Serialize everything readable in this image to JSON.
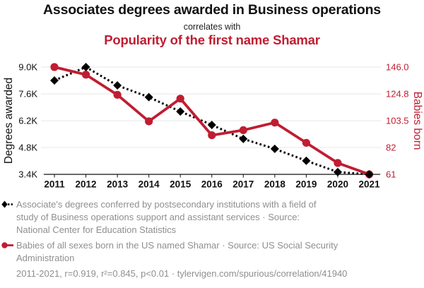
{
  "header": {
    "title": "Associates degrees awarded in Business operations",
    "connector": "correlates with",
    "subtitle": "Popularity of the first name Shamar"
  },
  "colors": {
    "accent_red": "#c01d32",
    "series_black": "#000000",
    "legend_gray": "#8f8f8f",
    "gridline": "#e7e7e7",
    "axis_black": "#111111"
  },
  "chart_data": {
    "type": "line",
    "x": [
      2011,
      2012,
      2013,
      2014,
      2015,
      2016,
      2017,
      2018,
      2019,
      2020,
      2021
    ],
    "x_tick_labels": [
      "2011",
      "2012",
      "2013",
      "2014",
      "2015",
      "2016",
      "2017",
      "2018",
      "2019",
      "2020",
      "2021"
    ],
    "series": [
      {
        "name": "Associate's degrees in Business operations support",
        "axis": "left",
        "color": "#000000",
        "line_style": "dashed",
        "marker": "diamond",
        "values": [
          8300,
          9000,
          8040,
          7430,
          6680,
          5980,
          5250,
          4730,
          4110,
          3520,
          3400
        ]
      },
      {
        "name": "Babies born named Shamar",
        "axis": "right",
        "color": "#c01d32",
        "line_style": "solid",
        "marker": "circle",
        "values": [
          146,
          140,
          124,
          103,
          121,
          92,
          96,
          102,
          86,
          70,
          61
        ]
      }
    ],
    "left_axis": {
      "label": "Degrees awarded",
      "min": 3400,
      "max": 9000,
      "tick_labels": [
        "9.0K",
        "7.6K",
        "6.2K",
        "4.8K",
        "3.4K"
      ]
    },
    "right_axis": {
      "label": "Babies born",
      "min": 61,
      "max": 146,
      "tick_labels": [
        "146.0",
        "124.8",
        "103.5",
        "82",
        "61"
      ]
    },
    "grid": "horizontal",
    "legend_position": "bottom"
  },
  "legend": {
    "items": [
      {
        "icon": "diamond-dashed-line-icon",
        "lines": [
          "Associate's degrees conferred by postsecondary institutions with a field of",
          "study of Business operations support and assistant services · Source:",
          "National Center for Education Statistics"
        ]
      },
      {
        "icon": "circle-solid-line-icon",
        "lines": [
          "Babies of all sexes born in the US named Shamar · Source: US Social Security",
          "Administration"
        ]
      }
    ],
    "footer": "2011-2021, r=0.919, r²=0.845, p<0.01 · tylervigen.com/spurious/correlation/41940"
  }
}
